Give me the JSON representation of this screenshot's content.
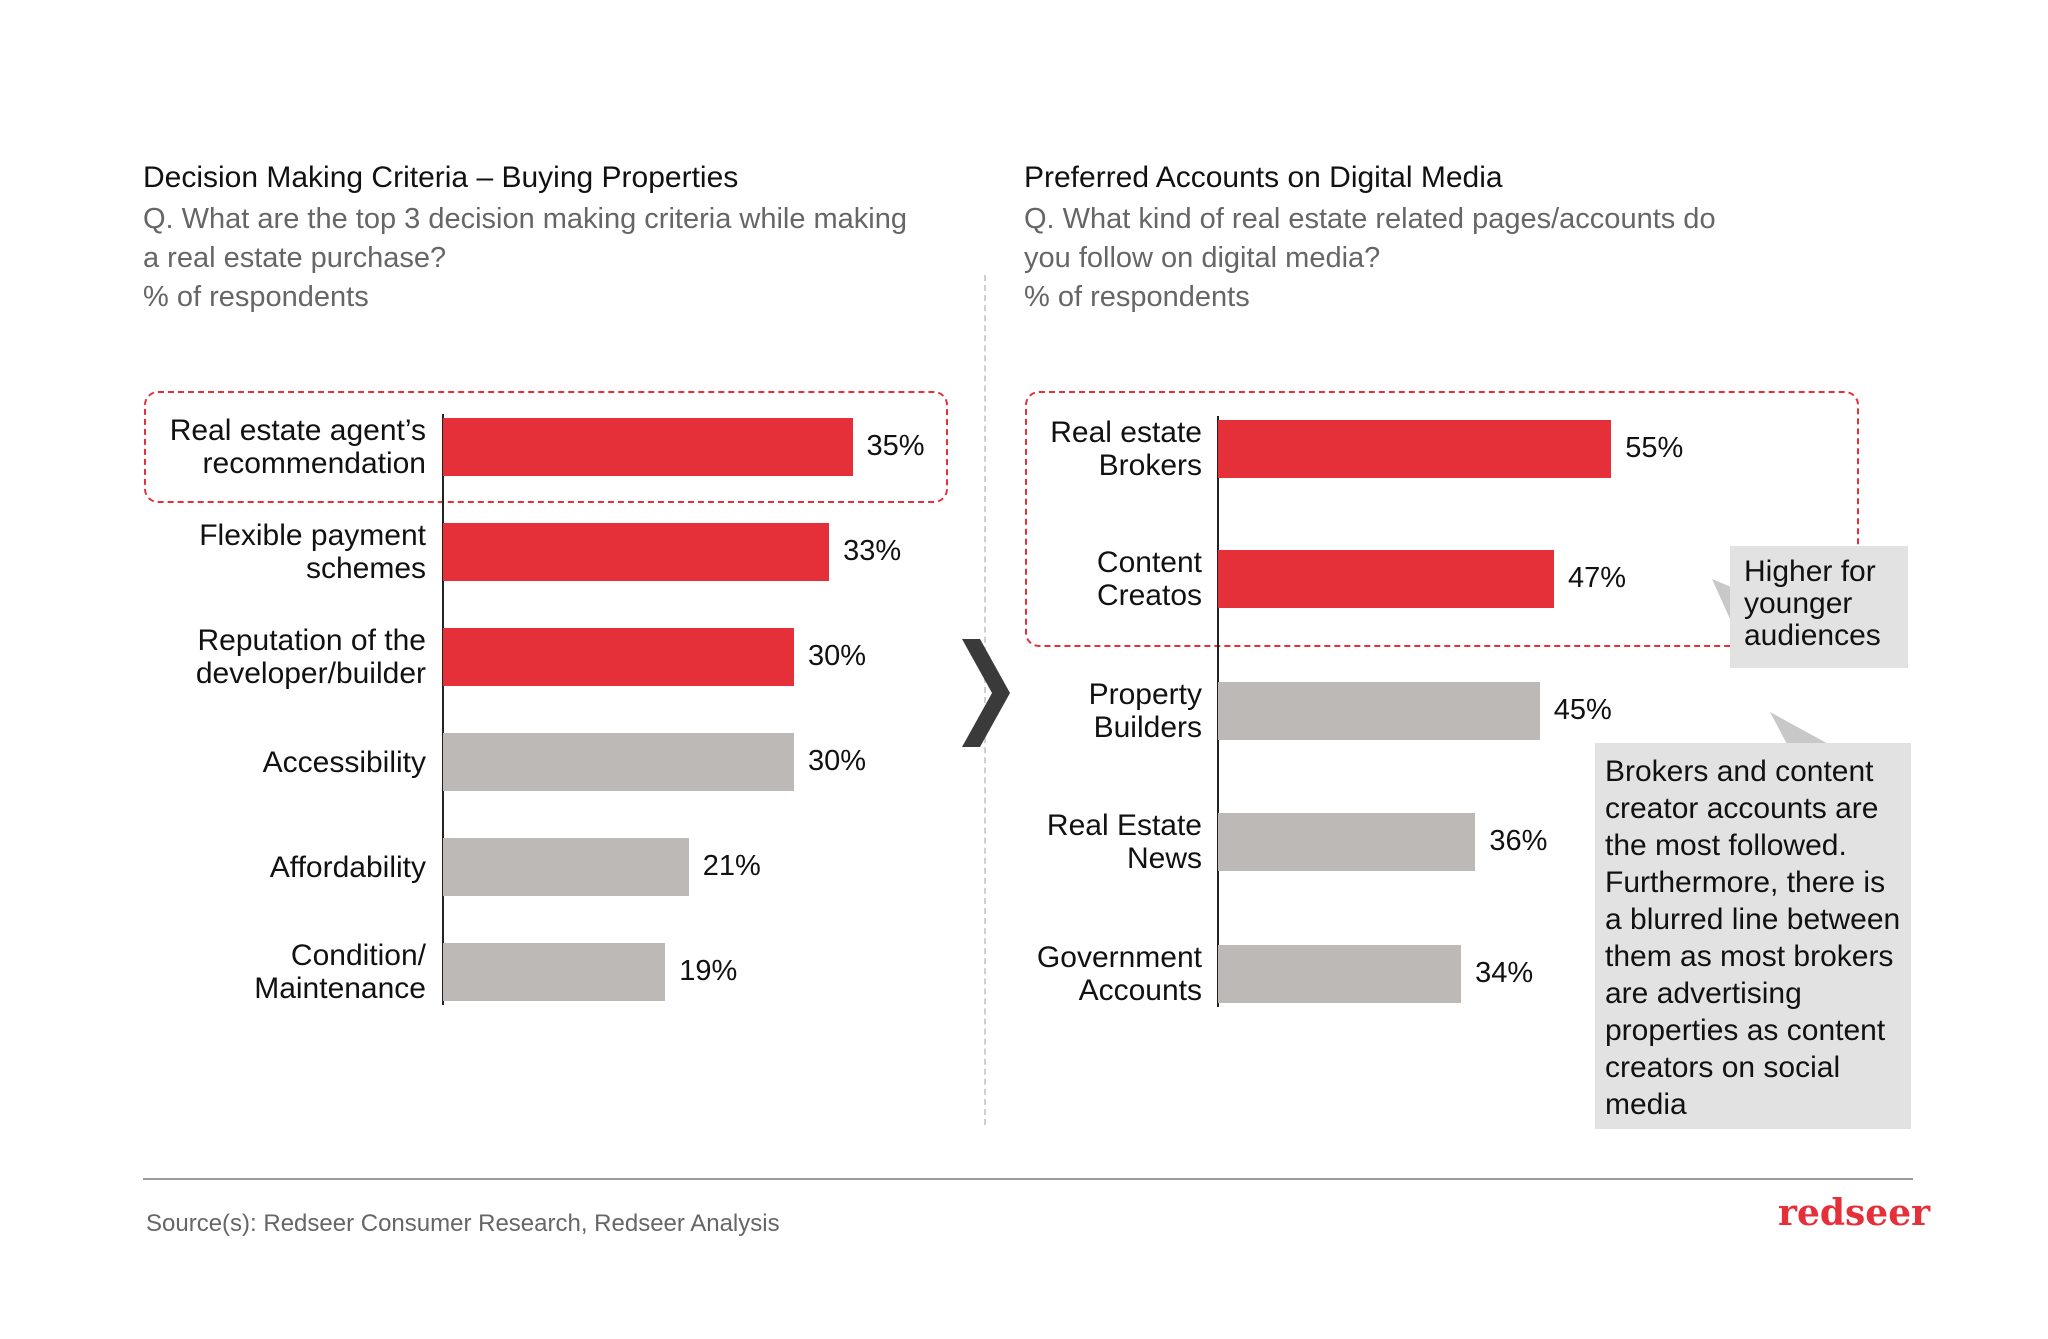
{
  "left_panel": {
    "title": "Decision Making Criteria – Buying Properties",
    "question_line1": "Q. What are the top 3 decision making criteria while making",
    "question_line2": "a real estate purchase?",
    "unit": "% of respondents"
  },
  "right_panel": {
    "title": "Preferred Accounts on Digital Media",
    "question_line1": "Q. What kind of real estate related pages/accounts do",
    "question_line2": "you follow on digital media?",
    "unit": "% of respondents",
    "callout_small": "Higher for younger audiences",
    "callout_large": "Brokers and content creator accounts are the most followed. Furthermore, there is a blurred line between them as most brokers are advertising properties as content creators on social media"
  },
  "colors": {
    "highlight": "#e5303a",
    "neutral": "#bdb9b7",
    "callout_bg": "#e2e2e2",
    "brand": "#e5303a"
  },
  "chart_data": [
    {
      "type": "bar",
      "orientation": "horizontal",
      "title": "Decision Making Criteria – Buying Properties",
      "categories": [
        [
          "Real estate agent’s",
          "recommendation"
        ],
        [
          "Flexible payment",
          "schemes"
        ],
        [
          "Reputation of the",
          "developer/builder"
        ],
        [
          "Accessibility"
        ],
        [
          "Affordability"
        ],
        [
          "Condition/",
          "Maintenance"
        ]
      ],
      "values": [
        35,
        33,
        30,
        30,
        21,
        19
      ],
      "labels": [
        "35%",
        "33%",
        "30%",
        "30%",
        "21%",
        "19%"
      ],
      "highlighted": [
        true,
        true,
        true,
        false,
        false,
        false
      ],
      "xlim": [
        0,
        50
      ]
    },
    {
      "type": "bar",
      "orientation": "horizontal",
      "title": "Preferred Accounts on Digital Media",
      "categories": [
        [
          "Real estate",
          "Brokers"
        ],
        [
          "Content",
          "Creatos"
        ],
        [
          "Property",
          "Builders"
        ],
        [
          "Real Estate",
          "News"
        ],
        [
          "Government",
          "Accounts"
        ]
      ],
      "values": [
        55,
        47,
        45,
        36,
        34
      ],
      "labels": [
        "55%",
        "47%",
        "45%",
        "36%",
        "34%"
      ],
      "highlighted": [
        true,
        true,
        false,
        false,
        false
      ],
      "xlim": [
        0,
        75
      ]
    }
  ],
  "footer": {
    "source": "Source(s): Redseer Consumer Research, Redseer Analysis",
    "brand": "redseer"
  }
}
